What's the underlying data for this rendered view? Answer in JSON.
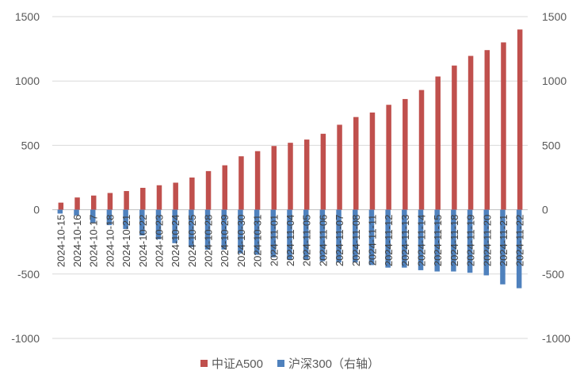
{
  "chart_data": {
    "type": "bar",
    "categories": [
      "2024-10-15",
      "2024-10-16",
      "2024-10-17",
      "2024-10-18",
      "2024-10-21",
      "2024-10-22",
      "2024-10-23",
      "2024-10-24",
      "2024-10-25",
      "2024-10-28",
      "2024-10-29",
      "2024-10-30",
      "2024-10-31",
      "2024-11-01",
      "2024-11-04",
      "2024-11-05",
      "2024-11-06",
      "2024-11-07",
      "2024-11-08",
      "2024-11-11",
      "2024-11-12",
      "2024-11-13",
      "2024-11-14",
      "2024-11-15",
      "2024-11-18",
      "2024-11-19",
      "2024-11-20",
      "2024-11-21",
      "2024-11-22"
    ],
    "series": [
      {
        "name": "中证A500",
        "axis": "left",
        "color": "#C0504D",
        "values": [
          55,
          95,
          110,
          130,
          145,
          170,
          190,
          210,
          250,
          300,
          345,
          415,
          455,
          495,
          520,
          545,
          590,
          660,
          720,
          755,
          815,
          860,
          930,
          1035,
          1120,
          1195,
          1240,
          1300,
          1400
        ]
      },
      {
        "name": "沪深300（右轴）",
        "axis": "right",
        "color": "#4F81BD",
        "values": [
          -30,
          -45,
          -100,
          -120,
          -150,
          -200,
          -230,
          -260,
          -290,
          -310,
          -310,
          -340,
          -350,
          -370,
          -390,
          -390,
          -400,
          -410,
          -410,
          -430,
          -450,
          -450,
          -470,
          -480,
          -480,
          -490,
          -510,
          -580,
          -610
        ]
      }
    ],
    "ylim": [
      -1000,
      1500
    ],
    "y2lim": [
      -1000,
      1500
    ],
    "yticks": [
      -1000,
      -500,
      0,
      500,
      1000,
      1500
    ],
    "xlabel": "",
    "ylabel": "",
    "grid": true,
    "legend_position": "bottom"
  }
}
